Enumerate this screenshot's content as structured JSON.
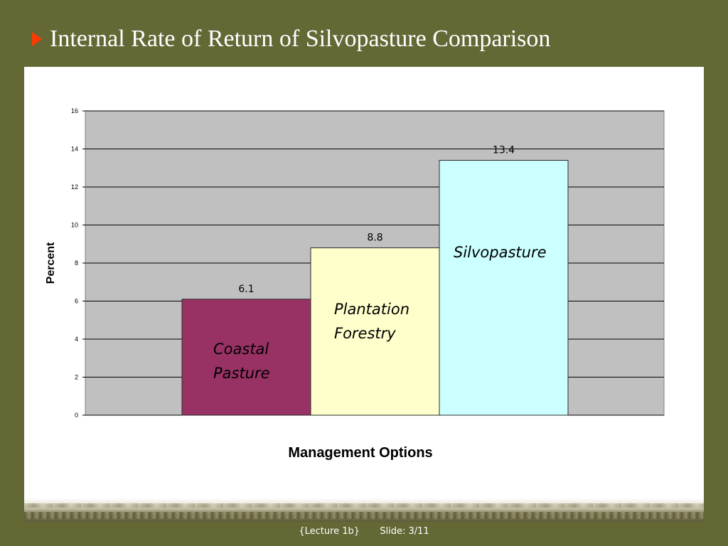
{
  "slide": {
    "title": "Internal Rate of Return of Silvopasture Comparison",
    "footer_lecture": "{Lecture 1b}",
    "footer_slide": "Slide: 3/11"
  },
  "chart_data": {
    "type": "bar",
    "categories": [
      "Coastal Pasture",
      "Plantation Forestry",
      "Silvopasture"
    ],
    "category_lines": [
      [
        "Coastal",
        "Pasture"
      ],
      [
        "Plantation",
        "Forestry"
      ],
      [
        "Silvopasture"
      ]
    ],
    "values": [
      6.1,
      8.8,
      13.4
    ],
    "value_labels": [
      "6.1",
      "8.8",
      "13.4"
    ],
    "colors": [
      "#983265",
      "#ffffcc",
      "#ccffff"
    ],
    "title": "",
    "xlabel": "Management Options",
    "ylabel": "Percent",
    "ylim": [
      0,
      16
    ],
    "yticks": [
      0,
      2,
      4,
      6,
      8,
      10,
      12,
      14,
      16
    ],
    "grid": true,
    "plot_background": "#c0c0c0",
    "legend": "none"
  }
}
